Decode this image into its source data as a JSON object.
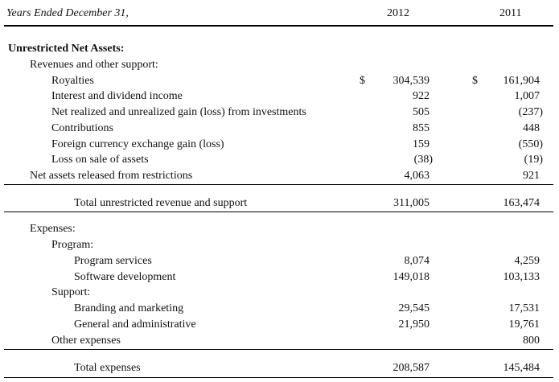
{
  "header": {
    "period_label": "Years Ended December 31,",
    "year_current": "2012",
    "year_prior": "2011"
  },
  "section": {
    "title": "Unrestricted Net Assets:"
  },
  "revenues": {
    "label": "Revenues and other support:",
    "rows": [
      {
        "label": "Royalties",
        "currency": "$",
        "v2012": "304,539",
        "v2011": "161,904"
      },
      {
        "label": "Interest and dividend income",
        "v2012": "922",
        "v2011": "1,007"
      },
      {
        "label": "Net realized and unrealized gain (loss) from investments",
        "v2012": "505",
        "v2011": "(237)"
      },
      {
        "label": "Contributions",
        "v2012": "855",
        "v2011": "448"
      },
      {
        "label": "Foreign currency exchange gain (loss)",
        "v2012": "159",
        "v2011": "(550)"
      },
      {
        "label": "Loss on sale of assets",
        "v2012": "(38)",
        "v2011": "(19)"
      }
    ]
  },
  "released": {
    "label": "Net assets released from restrictions",
    "v2012": "4,063",
    "v2011": "921"
  },
  "total_revenue": {
    "label": "Total unrestricted revenue and support",
    "v2012": "311,005",
    "v2011": "163,474"
  },
  "expenses": {
    "label": "Expenses:",
    "program": {
      "label": "Program:",
      "rows": [
        {
          "label": "Program services",
          "v2012": "8,074",
          "v2011": "4,259"
        },
        {
          "label": "Software development",
          "v2012": "149,018",
          "v2011": "103,133"
        }
      ]
    },
    "support": {
      "label": "Support:",
      "rows": [
        {
          "label": "Branding and marketing",
          "v2012": "29,545",
          "v2011": "17,531"
        },
        {
          "label": "General and administrative",
          "v2012": "21,950",
          "v2011": "19,761"
        }
      ]
    },
    "other": {
      "label": "Other expenses",
      "v2012": "",
      "v2011": "800"
    }
  },
  "total_expenses": {
    "label": "Total expenses",
    "v2012": "208,587",
    "v2011": "145,484"
  }
}
